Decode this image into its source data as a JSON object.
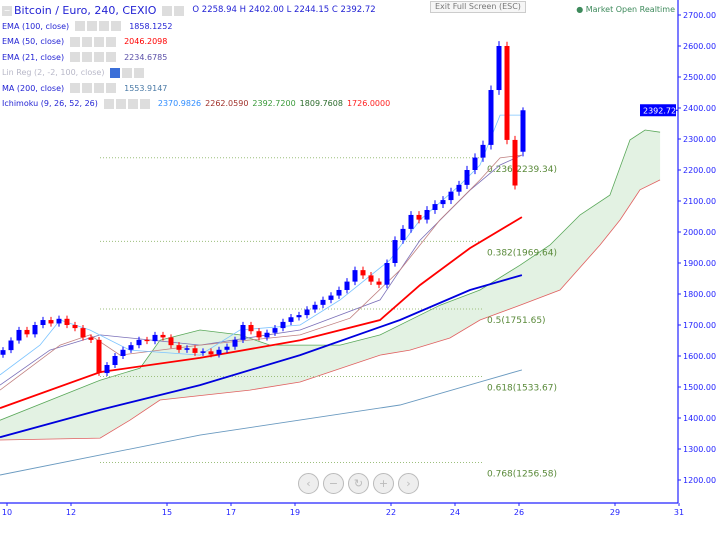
{
  "header": {
    "symbol": "Bitcoin / Euro, 240, CEXIO",
    "ohlc": "O 2258.94 H 2402.00 L 2244.15 C 2392.72",
    "tooltip": "Exit Full Screen (ESC)",
    "status": "Market Open  Realtime"
  },
  "indicators": [
    {
      "label": "EMA (100, close)",
      "values": [
        "1858.1252"
      ],
      "colors": [
        "#2323d4"
      ]
    },
    {
      "label": "EMA (50, close)",
      "values": [
        "2046.2098"
      ],
      "colors": [
        "#ff0000"
      ]
    },
    {
      "label": "EMA (21, close)",
      "values": [
        "2234.6785"
      ],
      "colors": [
        "#5a4fa8"
      ]
    },
    {
      "label": "Lin Reg (2, -2, 100, close)",
      "values": [],
      "colors": []
    },
    {
      "label": "MA (200, close)",
      "values": [
        "1553.9147"
      ],
      "colors": [
        "#4a7aa6"
      ]
    },
    {
      "label": "Ichimoku (9, 26, 52, 26)",
      "values": [
        "2370.9826",
        "2262.0590",
        "2392.7200",
        "1809.7608",
        "1726.0000"
      ],
      "colors": [
        "#2f8cff",
        "#a0302a",
        "#3a9a3a",
        "#2a6a2a",
        "#ff2020"
      ]
    }
  ],
  "nav": [
    "‹",
    "−",
    "↻",
    "+",
    "›"
  ],
  "chart_data": {
    "type": "candlestick",
    "colors": {
      "up": "#0000ff",
      "down": "#ff0000",
      "ema100": "#0000dd",
      "ema50": "#ff0000",
      "ema21": "#7a6fb8",
      "tenkan": "#7cc4ff",
      "kijun": "#c08080",
      "ma200": "#6a9ac0",
      "spanA": "#5aa85a",
      "spanB": "#e06060",
      "cloud": "#e3f2e3",
      "fib": "#5a8a3a",
      "axis": "#2323ff"
    },
    "yticks": [
      2700,
      2600,
      2500,
      2400,
      2300,
      2200,
      2100,
      2000,
      1900,
      1800,
      1700,
      1600,
      1500,
      1400,
      1300,
      1200
    ],
    "xticks": [
      "10",
      "12",
      "15",
      "17",
      "19",
      "22",
      "24",
      "26",
      "29",
      "31"
    ],
    "xtick_days": [
      10,
      12,
      15,
      17,
      19,
      22,
      24,
      26,
      29,
      31
    ],
    "ylim": [
      1150,
      2750
    ],
    "last_price": "2392.72",
    "close": [
      1619,
      1650,
      1684,
      1670,
      1700,
      1716,
      1705,
      1720,
      1700,
      1690,
      1660,
      1652,
      1545,
      1571,
      1600,
      1620,
      1635,
      1652,
      1648,
      1668,
      1660,
      1635,
      1620,
      1625,
      1610,
      1615,
      1605,
      1620,
      1630,
      1652,
      1700,
      1680,
      1660,
      1675,
      1690,
      1710,
      1725,
      1732,
      1750,
      1765,
      1781,
      1795,
      1813,
      1840,
      1877,
      1860,
      1840,
      1830,
      1900,
      1974,
      2010,
      2055,
      2040,
      2071,
      2090,
      2103,
      2130,
      2152,
      2200,
      2240,
      2281,
      2458,
      2600,
      2297,
      2150,
      2392.72
    ],
    "last_candle": {
      "o": 2258.94,
      "h": 2402.0,
      "l": 2244.15,
      "c": 2392.72
    },
    "lines": {
      "ma200": [
        [
          9.78,
          1216
        ],
        [
          16.03,
          1345
        ],
        [
          22.28,
          1442
        ],
        [
          26.09,
          1555
        ]
      ],
      "ema100": [
        [
          9.78,
          1338
        ],
        [
          12.91,
          1426
        ],
        [
          16.03,
          1506
        ],
        [
          19.16,
          1603
        ],
        [
          22.28,
          1716
        ],
        [
          24.47,
          1813
        ],
        [
          26.09,
          1861
        ]
      ],
      "ema50": [
        [
          9.78,
          1432
        ],
        [
          12.91,
          1548
        ],
        [
          16.03,
          1594
        ],
        [
          19.16,
          1651
        ],
        [
          21.66,
          1716
        ],
        [
          22.91,
          1829
        ],
        [
          24.47,
          1948
        ],
        [
          26.09,
          2048
        ]
      ],
      "ema21": [
        [
          9.78,
          1506
        ],
        [
          11.34,
          1619
        ],
        [
          12.91,
          1668
        ],
        [
          16.03,
          1635
        ],
        [
          19.16,
          1684
        ],
        [
          21.66,
          1781
        ],
        [
          22.91,
          1974
        ],
        [
          24.47,
          2135
        ],
        [
          25.41,
          2216
        ],
        [
          26.09,
          2248
        ]
      ],
      "kijun": [
        [
          9.78,
          1490
        ],
        [
          11.66,
          1635
        ],
        [
          12.59,
          1668
        ],
        [
          13.53,
          1603
        ],
        [
          16.03,
          1635
        ],
        [
          19.16,
          1668
        ],
        [
          20.72,
          1722
        ],
        [
          22.28,
          1877
        ],
        [
          23.53,
          2039
        ],
        [
          24.78,
          2168
        ],
        [
          25.41,
          2239
        ],
        [
          26.09,
          2248
        ]
      ],
      "tenkan": [
        [
          9.78,
          1539
        ],
        [
          11.03,
          1635
        ],
        [
          11.66,
          1716
        ],
        [
          12.59,
          1684
        ],
        [
          13.84,
          1619
        ],
        [
          16.03,
          1603
        ],
        [
          17.28,
          1684
        ],
        [
          19.16,
          1700
        ],
        [
          20.41,
          1781
        ],
        [
          21.97,
          1910
        ],
        [
          22.91,
          2039
        ],
        [
          24.16,
          2152
        ],
        [
          24.78,
          2216
        ],
        [
          25.41,
          2377
        ],
        [
          25.72,
          2377
        ],
        [
          26.09,
          2377
        ]
      ]
    },
    "spanA": [
      [
        9.78,
        1393
      ],
      [
        12.91,
        1522
      ],
      [
        14.16,
        1561
      ],
      [
        14.78,
        1651
      ],
      [
        16.03,
        1684
      ],
      [
        17.28,
        1668
      ],
      [
        18.22,
        1635
      ],
      [
        20.41,
        1635
      ],
      [
        21.66,
        1668
      ],
      [
        23.53,
        1764
      ],
      [
        24.78,
        1813
      ],
      [
        26.03,
        1893
      ],
      [
        26.97,
        1958
      ],
      [
        27.91,
        2055
      ],
      [
        28.84,
        2119
      ],
      [
        29.47,
        2297
      ],
      [
        29.94,
        2329
      ],
      [
        30.41,
        2322
      ]
    ],
    "spanB": [
      [
        9.78,
        1329
      ],
      [
        12.91,
        1335
      ],
      [
        13.84,
        1393
      ],
      [
        14.78,
        1458
      ],
      [
        17.59,
        1490
      ],
      [
        19.16,
        1516
      ],
      [
        21.66,
        1603
      ],
      [
        22.59,
        1619
      ],
      [
        23.84,
        1658
      ],
      [
        24.78,
        1716
      ],
      [
        26.03,
        1764
      ],
      [
        27.28,
        1813
      ],
      [
        28.53,
        1958
      ],
      [
        29.16,
        2039
      ],
      [
        29.78,
        2136
      ],
      [
        30.41,
        2168
      ]
    ],
    "fib": [
      {
        "label": "0.236(2239.34)",
        "price": 2239.34
      },
      {
        "label": "0.382(1969.64)",
        "price": 1969.64
      },
      {
        "label": "0.5(1751.65)",
        "price": 1751.65
      },
      {
        "label": "0.618(1533.67)",
        "price": 1533.67
      },
      {
        "label": "0.768(1256.58)",
        "price": 1256.58
      }
    ]
  }
}
